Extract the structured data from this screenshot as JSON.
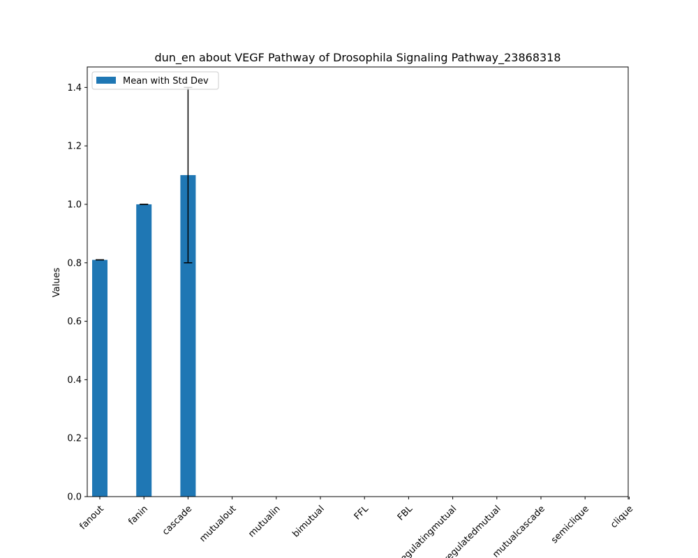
{
  "chart_data": {
    "type": "bar",
    "title": "dun_en about VEGF Pathway of Drosophila Signaling Pathway_23868318",
    "xlabel": "",
    "ylabel": "Values",
    "categories": [
      "fanout",
      "fanin",
      "cascade",
      "mutualout",
      "mutualin",
      "bimutual",
      "FFL",
      "FBL",
      "regulatingmutual",
      "regulatedmutual",
      "mutualcascade",
      "semiclique",
      "clique"
    ],
    "series": [
      {
        "name": "Mean with Std Dev",
        "values": [
          0.81,
          1.0,
          1.1,
          0,
          0,
          0,
          0,
          0,
          0,
          0,
          0,
          0,
          0
        ],
        "std": [
          0.0,
          0.0,
          0.3,
          0,
          0,
          0,
          0,
          0,
          0,
          0,
          0,
          0,
          0
        ]
      }
    ],
    "ylim": [
      0,
      1.47
    ],
    "yticks": [
      0.0,
      0.2,
      0.4,
      0.6,
      0.8,
      1.0,
      1.2,
      1.4
    ],
    "ytick_labels": [
      "0.0",
      "0.2",
      "0.4",
      "0.6",
      "0.8",
      "1.0",
      "1.2",
      "1.4"
    ],
    "grid": false,
    "legend_position": "top-left",
    "colors": {
      "bar": "#1f77b4",
      "errorbar": "#000000",
      "axes": "#000000"
    }
  }
}
